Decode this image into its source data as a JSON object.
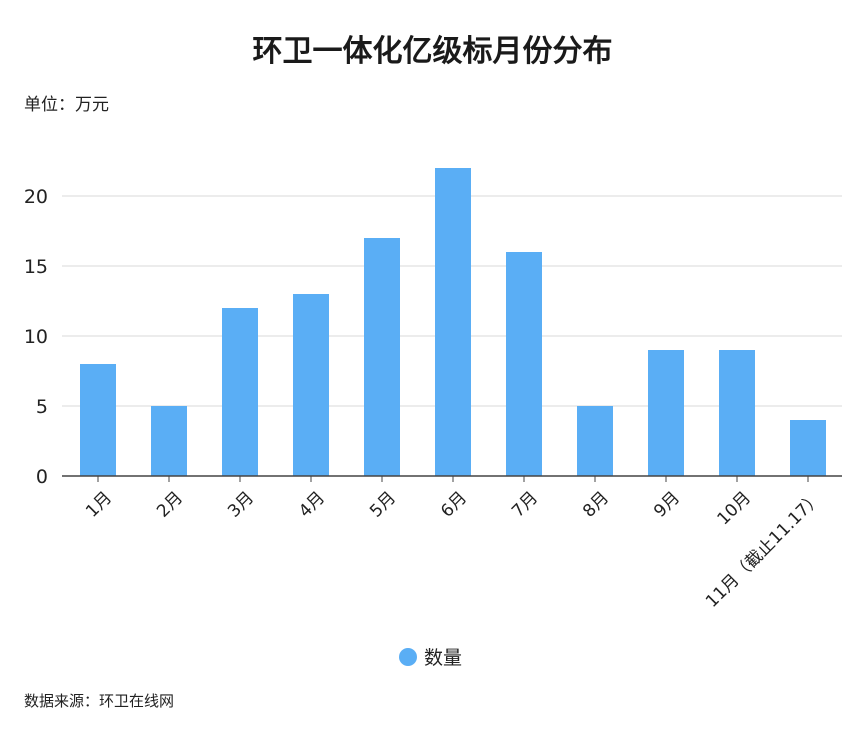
{
  "chart_data": {
    "type": "bar",
    "title": "环卫一体化亿级标月份分布",
    "unit_label": "单位：万元",
    "source": "数据来源：环卫在线网",
    "categories": [
      "1月",
      "2月",
      "3月",
      "4月",
      "5月",
      "6月",
      "7月",
      "8月",
      "9月",
      "10月",
      "11月（截止11.17）"
    ],
    "series": [
      {
        "name": "数量",
        "values": [
          8,
          5,
          12,
          13,
          17,
          22,
          16,
          5,
          9,
          9,
          4
        ],
        "color": "#5aaef5"
      }
    ],
    "yticks": [
      "0",
      "5",
      "10",
      "15",
      "20"
    ],
    "ylim": [
      0,
      25
    ],
    "grid": true,
    "legend_position": "bottom-center"
  }
}
